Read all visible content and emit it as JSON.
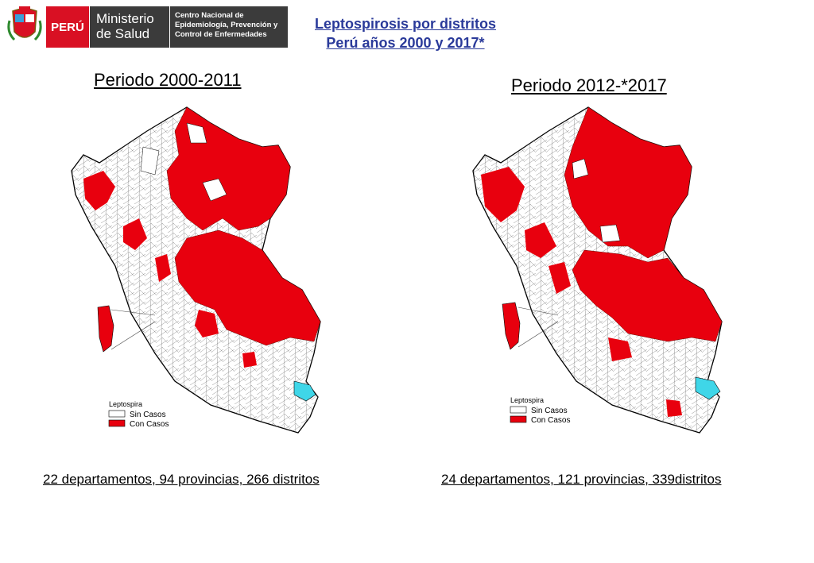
{
  "header": {
    "country": "PERÚ",
    "ministry_line1": "Ministerio",
    "ministry_line2": "de Salud",
    "center_line1": "Centro Nacional de",
    "center_line2": "Epidemiología, Prevención y",
    "center_line3": "Control de Enfermedades"
  },
  "title": {
    "line1": "Leptospirosis por distritos",
    "line2": "Perú años 2000 y 2017*"
  },
  "maps": [
    {
      "period": "Periodo 2000-2011",
      "caption": "22 departamentos, 94 provincias, 266 distritos",
      "legend_title": "Leptospira",
      "legend_items": [
        "Sin Casos",
        "Con Casos"
      ]
    },
    {
      "period": "Periodo 2012-*2017",
      "caption": "24 departamentos, 121 provincias, 339distritos",
      "legend_title": "Leptospira",
      "legend_items": [
        "Sin Casos",
        "Con Casos"
      ]
    }
  ],
  "colors": {
    "con_casos": "#e8000e",
    "sin_casos": "#ffffff",
    "lake": "#3fd6e8",
    "title_blue": "#2a3a9a",
    "header_dark": "#3b3b3b",
    "header_red": "#d91023"
  }
}
